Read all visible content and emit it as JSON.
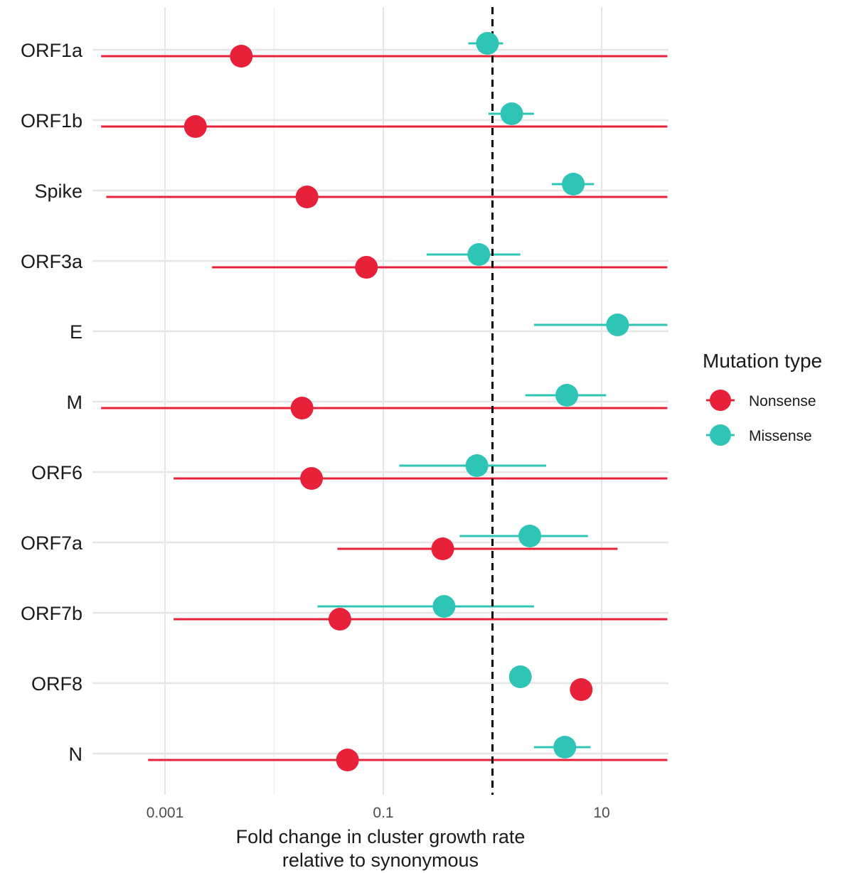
{
  "chart_data": {
    "type": "scatter",
    "subtype": "forest-plot",
    "xscale": "log10",
    "xlim": [
      0.00026,
      40
    ],
    "x_ticks": [
      0.001,
      0.1,
      10
    ],
    "x_tick_labels": [
      "0.001",
      "0.1",
      "10"
    ],
    "reference_line": {
      "x": 1,
      "style": "dashed"
    },
    "xlabel_line1": "Fold change in cluster growth rate",
    "xlabel_line2": "relative to synonymous",
    "ylabel": "",
    "categories": [
      "ORF1a",
      "ORF1b",
      "Spike",
      "ORF3a",
      "E",
      "M",
      "ORF6",
      "ORF7a",
      "ORF7b",
      "ORF8",
      "N"
    ],
    "legend": {
      "title": "Mutation type",
      "position": "right",
      "entries": [
        "Nonsense",
        "Missense"
      ]
    },
    "series": [
      {
        "name": "Nonsense",
        "color": "#e8213a",
        "points": [
          {
            "category": "ORF1a",
            "value": 0.005,
            "lower": 0.00026,
            "upper": 40
          },
          {
            "category": "ORF1b",
            "value": 0.0019,
            "lower": 0.00026,
            "upper": 40
          },
          {
            "category": "Spike",
            "value": 0.02,
            "lower": 0.00029,
            "upper": 40
          },
          {
            "category": "ORF3a",
            "value": 0.07,
            "lower": 0.0027,
            "upper": 40
          },
          {
            "category": "M",
            "value": 0.018,
            "lower": 0.00026,
            "upper": 40
          },
          {
            "category": "ORF6",
            "value": 0.022,
            "lower": 0.0012,
            "upper": 40
          },
          {
            "category": "ORF7a",
            "value": 0.35,
            "lower": 0.038,
            "upper": 14
          },
          {
            "category": "ORF7b",
            "value": 0.04,
            "lower": 0.0012,
            "upper": 40
          },
          {
            "category": "ORF8",
            "value": 6.5,
            "lower": null,
            "upper": null
          },
          {
            "category": "N",
            "value": 0.047,
            "lower": 0.0007,
            "upper": 40
          }
        ]
      },
      {
        "name": "Missense",
        "color": "#2ec4b6",
        "points": [
          {
            "category": "ORF1a",
            "value": 0.9,
            "lower": 0.6,
            "upper": 1.25
          },
          {
            "category": "ORF1b",
            "value": 1.5,
            "lower": 0.92,
            "upper": 2.4
          },
          {
            "category": "Spike",
            "value": 5.5,
            "lower": 3.5,
            "upper": 8.5
          },
          {
            "category": "ORF3a",
            "value": 0.75,
            "lower": 0.25,
            "upper": 1.8
          },
          {
            "category": "E",
            "value": 14,
            "lower": 2.4,
            "upper": 40
          },
          {
            "category": "M",
            "value": 4.8,
            "lower": 2.0,
            "upper": 11
          },
          {
            "category": "ORF6",
            "value": 0.72,
            "lower": 0.14,
            "upper": 3.1
          },
          {
            "category": "ORF7a",
            "value": 2.2,
            "lower": 0.5,
            "upper": 7.5
          },
          {
            "category": "ORF7b",
            "value": 0.36,
            "lower": 0.025,
            "upper": 2.4
          },
          {
            "category": "ORF8",
            "value": 1.8,
            "lower": null,
            "upper": null
          },
          {
            "category": "N",
            "value": 4.6,
            "lower": 2.4,
            "upper": 7.9
          }
        ]
      }
    ]
  }
}
